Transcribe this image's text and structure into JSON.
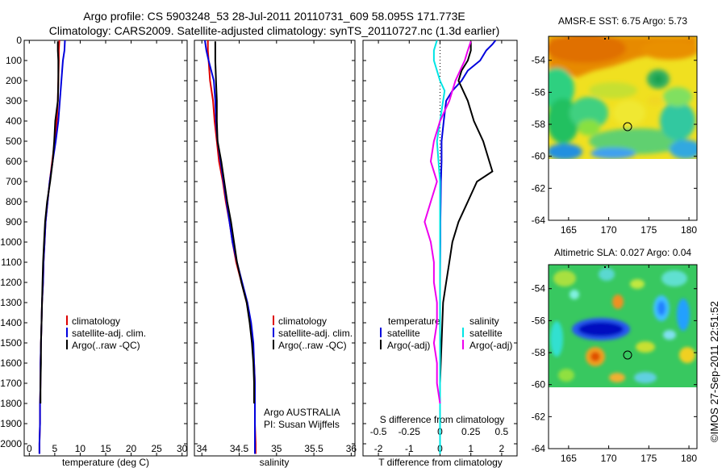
{
  "title_line1": "Argo profile: CS 5903248_53 28-Jul-2011 20110731_609 58.095S 171.773E",
  "title_line2": "Climatology: CARS2009. Satellite-adjusted climatology: synTS_20110727.nc (1.3d earlier)",
  "copyright": "©IMOS 27-Sep-2011 22:51:52",
  "colors": {
    "climatology": "#dd0000",
    "satellite": "#0000dd",
    "argo": "#000000",
    "sat_salinity": "#00e5e5",
    "argo_salinity": "#ee00ee"
  },
  "chart_data": [
    {
      "type": "line",
      "panel": "temperature",
      "xlabel": "temperature (deg C)",
      "xlim": [
        -1,
        31
      ],
      "xticks": [
        0,
        5,
        10,
        15,
        20,
        25,
        30
      ],
      "xtick_labels": [
        "0",
        "5",
        "10",
        "15",
        "20",
        "25",
        "30"
      ],
      "ylim": [
        0,
        2060
      ],
      "yticks": [
        0,
        100,
        200,
        300,
        400,
        500,
        600,
        700,
        800,
        900,
        1000,
        1100,
        1200,
        1300,
        1400,
        1500,
        1600,
        1700,
        1800,
        1900,
        2000
      ],
      "ytick_labels": [
        "0",
        "100",
        "200",
        "300",
        "400",
        "500",
        "600",
        "700",
        "800",
        "900",
        "1000",
        "1100",
        "1200",
        "1300",
        "1400",
        "1500",
        "1600",
        "1700",
        "1800",
        "1900",
        "2000"
      ],
      "legend": [
        "climatology",
        "satellite-adj. clim.",
        "Argo(..raw -QC)"
      ],
      "series": [
        {
          "name": "climatology",
          "color": "#dd0000",
          "x": [
            5.9,
            5.8,
            5.8,
            5.7,
            5.6,
            5.4,
            5.0,
            4.5,
            4.0,
            3.6,
            3.2,
            3.0,
            2.8,
            2.7,
            2.5,
            2.4,
            2.3,
            2.2,
            2.2,
            2.1,
            2.1,
            2.0,
            2.0
          ],
          "y": [
            0,
            50,
            100,
            200,
            300,
            400,
            500,
            600,
            700,
            800,
            900,
            1000,
            1100,
            1200,
            1300,
            1400,
            1500,
            1600,
            1700,
            1800,
            1900,
            2000,
            2050
          ]
        },
        {
          "name": "satellite-adj. clim.",
          "color": "#0000dd",
          "x": [
            7.0,
            6.9,
            6.6,
            6.3,
            6.0,
            5.7,
            5.2,
            4.6,
            4.0,
            3.6,
            3.2,
            3.0,
            2.8,
            2.7,
            2.5,
            2.4,
            2.3,
            2.2,
            2.2,
            2.1,
            2.1,
            2.0,
            2.0
          ],
          "y": [
            0,
            50,
            100,
            200,
            300,
            400,
            500,
            600,
            700,
            800,
            900,
            1000,
            1100,
            1200,
            1300,
            1400,
            1500,
            1600,
            1700,
            1800,
            1900,
            2000,
            2050
          ]
        },
        {
          "name": "Argo(..raw -QC)",
          "color": "#000000",
          "x": [
            5.6,
            5.6,
            5.7,
            5.7,
            5.6,
            5.1,
            4.9,
            4.6,
            4.1,
            3.5,
            3.1,
            2.9,
            2.7,
            2.6,
            2.5,
            2.4,
            2.3,
            2.3,
            2.2,
            2.2
          ],
          "y": [
            5,
            50,
            100,
            200,
            300,
            400,
            500,
            600,
            700,
            800,
            900,
            1000,
            1100,
            1200,
            1300,
            1400,
            1500,
            1600,
            1700,
            1800
          ]
        }
      ]
    },
    {
      "type": "line",
      "panel": "salinity",
      "xlabel": "salinity",
      "xlim": [
        33.9,
        36.05
      ],
      "xticks": [
        34,
        34.5,
        35,
        35.5,
        36
      ],
      "xtick_labels": [
        "34",
        "34.5",
        "35",
        "35.5",
        "36"
      ],
      "ylim": [
        0,
        2060
      ],
      "legend": [
        "climatology",
        "satellite-adj. clim.",
        "Argo(..raw -QC)"
      ],
      "annotation_lines": [
        "Argo AUSTRALIA",
        "PI: Susan Wijffels"
      ],
      "series": [
        {
          "name": "climatology",
          "color": "#dd0000",
          "x": [
            34.08,
            34.08,
            34.09,
            34.11,
            34.15,
            34.17,
            34.2,
            34.23,
            34.28,
            34.32,
            34.37,
            34.41,
            34.46,
            34.53,
            34.6,
            34.65,
            34.68,
            34.7,
            34.71,
            34.71,
            34.71,
            34.72,
            34.72
          ],
          "y": [
            0,
            50,
            100,
            200,
            300,
            400,
            500,
            600,
            700,
            800,
            900,
            1000,
            1100,
            1200,
            1300,
            1400,
            1500,
            1600,
            1700,
            1800,
            1900,
            2000,
            2050
          ]
        },
        {
          "name": "satellite-adj. clim.",
          "color": "#0000dd",
          "x": [
            34.04,
            34.06,
            34.09,
            34.16,
            34.18,
            34.19,
            34.21,
            34.25,
            34.29,
            34.33,
            34.37,
            34.41,
            34.47,
            34.54,
            34.61,
            34.66,
            34.69,
            34.7,
            34.71,
            34.71,
            34.71,
            34.71,
            34.71
          ],
          "y": [
            0,
            50,
            100,
            200,
            300,
            400,
            500,
            600,
            700,
            800,
            900,
            1000,
            1100,
            1200,
            1300,
            1400,
            1500,
            1600,
            1700,
            1800,
            1900,
            2000,
            2050
          ]
        },
        {
          "name": "Argo(..raw -QC)",
          "color": "#000000",
          "x": [
            34.18,
            34.18,
            34.18,
            34.19,
            34.2,
            34.2,
            34.21,
            34.26,
            34.3,
            34.34,
            34.39,
            34.43,
            34.47,
            34.53,
            34.6,
            34.64,
            34.67,
            34.69,
            34.7,
            34.7
          ],
          "y": [
            5,
            50,
            100,
            200,
            300,
            400,
            500,
            600,
            700,
            800,
            900,
            1000,
            1100,
            1200,
            1300,
            1400,
            1500,
            1600,
            1700,
            1800
          ]
        }
      ]
    },
    {
      "type": "line",
      "panel": "difference",
      "xlabel": "T difference from climatology",
      "xlabel_top": "S difference from climatology",
      "xlim": [
        -2.5,
        2.5
      ],
      "xticks": [
        -2,
        -1,
        0,
        1,
        2
      ],
      "xtick_labels": [
        "-2",
        "-1",
        "0",
        "1",
        "2"
      ],
      "s_ticks": [
        -0.5,
        -0.25,
        0,
        0.25,
        0.5
      ],
      "s_tick_labels": [
        "-0.5",
        "-0.25",
        "0",
        "0.25",
        "0.5"
      ],
      "ylim": [
        0,
        2060
      ],
      "legend_headers": [
        "temperature",
        "salinity"
      ],
      "legend": [
        "satellite",
        "Argo(-adj)",
        "satellite",
        "Argo(-adj)"
      ],
      "series": [
        {
          "name": "satellite",
          "group": "temperature",
          "color": "#0000dd",
          "x": [
            1.8,
            1.7,
            1.5,
            1.3,
            0.9,
            0.7,
            0.4,
            0.2,
            0.12,
            0.05,
            0.05,
            0.03,
            0.02,
            0.01,
            0.01,
            0.0,
            0.0,
            0.0,
            0.0,
            0.0,
            0.0,
            0.0
          ],
          "y": [
            0,
            20,
            50,
            100,
            150,
            200,
            250,
            300,
            400,
            500,
            600,
            700,
            800,
            900,
            1000,
            1200,
            1400,
            1600,
            1800,
            1900,
            2000,
            2050
          ]
        },
        {
          "name": "Argo(-adj)",
          "group": "temperature",
          "color": "#000000",
          "x": [
            1.0,
            1.0,
            0.9,
            0.7,
            0.6,
            0.9,
            1.1,
            1.4,
            1.6,
            1.7,
            1.2,
            0.9,
            0.6,
            0.4,
            0.3,
            0.2,
            0.1,
            0.05,
            0.0,
            0.0
          ],
          "y": [
            5,
            50,
            100,
            150,
            200,
            300,
            400,
            500,
            600,
            650,
            700,
            800,
            900,
            1000,
            1100,
            1200,
            1300,
            1500,
            1700,
            1800
          ]
        },
        {
          "name": "satellite",
          "group": "salinity",
          "color": "#00e5e5",
          "x": [
            -0.1,
            -0.2,
            -0.2,
            -0.1,
            0.0,
            0.15,
            0.1,
            0.0,
            -0.1,
            -0.05,
            0.0,
            0.0,
            0.0,
            0.0,
            0.0,
            0.0,
            0.0,
            0.0,
            0.0,
            0.0
          ],
          "y": [
            0,
            50,
            100,
            150,
            200,
            250,
            300,
            400,
            500,
            600,
            700,
            800,
            900,
            1000,
            1200,
            1400,
            1600,
            1800,
            2000,
            2050
          ]
        },
        {
          "name": "Argo(-adj)",
          "group": "salinity",
          "color": "#ee00ee",
          "x": [
            1.0,
            0.9,
            0.8,
            0.5,
            0.3,
            0.0,
            -0.2,
            -0.3,
            -0.1,
            -0.3,
            -0.5,
            -0.3,
            -0.2,
            -0.2,
            -0.1,
            -0.1,
            -0.2,
            -0.1,
            -0.1,
            0.0
          ],
          "y": [
            5,
            50,
            100,
            200,
            300,
            400,
            500,
            600,
            700,
            800,
            900,
            1000,
            1100,
            1200,
            1300,
            1400,
            1500,
            1600,
            1700,
            1800
          ]
        }
      ]
    },
    {
      "type": "heatmap",
      "panel": "AMSR-E SST",
      "title": "AMSR-E SST: 6.75 Argo: 5.73",
      "xlim": [
        162.5,
        181
      ],
      "ylim": [
        -64,
        -52.5
      ],
      "xticks": [
        165,
        170,
        175,
        180
      ],
      "xtick_labels": [
        "165",
        "170",
        "175",
        "180"
      ],
      "yticks": [
        -54,
        -56,
        -58,
        -60,
        -62,
        -64
      ],
      "ytick_labels": [
        "-54",
        "-56",
        "-58",
        "-60",
        "-62",
        "-64"
      ],
      "data_lat_range": [
        -60.1,
        -52.5
      ],
      "float_position": {
        "lon": 171.8,
        "lat": -58.1
      }
    },
    {
      "type": "heatmap",
      "panel": "Altimetric SLA",
      "title": "Altimetric SLA: 0.027 Argo: 0.04",
      "xlim": [
        162.5,
        181
      ],
      "ylim": [
        -64,
        -52.5
      ],
      "xticks": [
        165,
        170,
        175,
        180
      ],
      "xtick_labels": [
        "165",
        "170",
        "175",
        "180"
      ],
      "yticks": [
        -54,
        -56,
        -58,
        -60,
        -62,
        -64
      ],
      "ytick_labels": [
        "-54",
        "-56",
        "-58",
        "-60",
        "-62",
        "-64"
      ],
      "data_lat_range": [
        -60.1,
        -52.5
      ],
      "float_position": {
        "lon": 171.8,
        "lat": -58.1
      }
    }
  ]
}
